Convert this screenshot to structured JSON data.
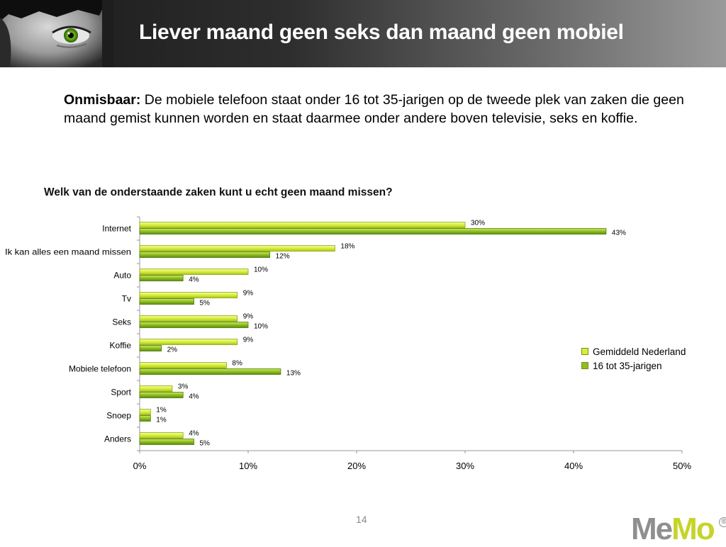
{
  "slide": {
    "title": "Liever maand geen seks dan maand geen mobiel",
    "intro_bold": "Onmisbaar:",
    "intro_text": " De mobiele telefoon staat onder 16 tot 35-jarigen op de tweede plek van zaken die geen maand gemist kunnen worden en staat daarmee onder andere boven televisie, seks en koffie.",
    "page_number": "14",
    "logo": {
      "me": "Me",
      "mo": "Mo",
      "reg": "®"
    }
  },
  "colors": {
    "header_dark": "#1a1a1a",
    "header_light": "#9a9a9a",
    "series_light": "#d8ee3a",
    "series_dark": "#8fbd22",
    "logo_grey": "#8f8f8f",
    "logo_green": "#c6d42a"
  },
  "chart_data": {
    "type": "bar",
    "orientation": "horizontal",
    "title": "Welk van de onderstaande zaken kunt u echt geen maand missen?",
    "categories": [
      "Internet",
      "Ik kan alles een maand missen",
      "Auto",
      "Tv",
      "Seks",
      "Koffie",
      "Mobiele telefoon",
      "Sport",
      "Snoep",
      "Anders"
    ],
    "series": [
      {
        "name": "Gemiddeld Nederland",
        "values": [
          30,
          18,
          10,
          9,
          9,
          9,
          8,
          3,
          1,
          4
        ],
        "labels": [
          "30%",
          "18%",
          "10%",
          "9%",
          "9%",
          "9%",
          "8%",
          "3%",
          "1%",
          "4%"
        ]
      },
      {
        "name": "16 tot 35-jarigen",
        "values": [
          43,
          12,
          4,
          5,
          10,
          2,
          13,
          4,
          1,
          5
        ],
        "labels": [
          "43%",
          "12%",
          "4%",
          "5%",
          "10%",
          "2%",
          "13%",
          "4%",
          "1%",
          "5%"
        ]
      }
    ],
    "xlim": [
      0,
      50
    ],
    "xticks": [
      0,
      10,
      20,
      30,
      40,
      50
    ],
    "xtick_labels": [
      "0%",
      "10%",
      "20%",
      "30%",
      "40%",
      "50%"
    ],
    "grid": false,
    "legend_position": "right"
  }
}
